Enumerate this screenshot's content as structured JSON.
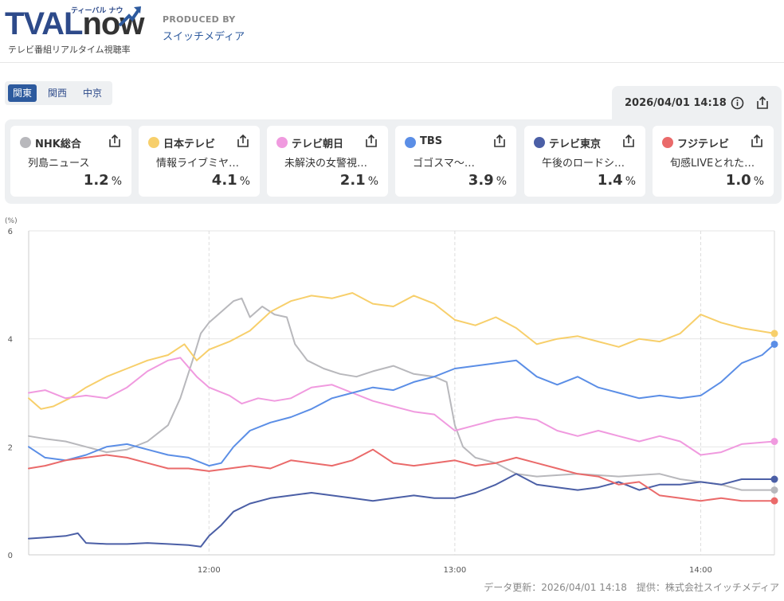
{
  "header": {
    "logo_text": "TVAL",
    "logo_now": "now",
    "logo_kana": "ティーバル ナウ",
    "logo_sub": "テレビ番組リアルタイム視聴率",
    "produced_by": "PRODUCED BY",
    "producer": "スイッチメディア"
  },
  "regions": [
    "関東",
    "関西",
    "中京"
  ],
  "active_region": "関東",
  "updated": "2026/04/01 14:18",
  "channels": [
    {
      "name": "NHK総合",
      "program": "列島ニュース",
      "rating": "1.2",
      "unit": "%",
      "color": "#b8b8bc"
    },
    {
      "name": "日本テレビ",
      "program": "情報ライブミヤ…",
      "rating": "4.1",
      "unit": "%",
      "color": "#f7cf6b"
    },
    {
      "name": "テレビ朝日",
      "program": "未解決の女警視…",
      "rating": "2.1",
      "unit": "%",
      "color": "#f09adf"
    },
    {
      "name": "TBS",
      "program": "ゴゴスマ〜…",
      "rating": "3.9",
      "unit": "%",
      "color": "#5b8ee6"
    },
    {
      "name": "テレビ東京",
      "program": "午後のロードシ…",
      "rating": "1.4",
      "unit": "%",
      "color": "#4b5fa6"
    },
    {
      "name": "フジテレビ",
      "program": "旬感LIVEとれた…",
      "rating": "1.0",
      "unit": "%",
      "color": "#ea6a6a"
    }
  ],
  "footer": "データ更新：2026/04/01 14:18　提供：株式会社スイッチメディア",
  "chart_data": {
    "type": "line",
    "ylabel": "(%)",
    "ylim": [
      0,
      6
    ],
    "yticks": [
      "0",
      "2",
      "4",
      "6"
    ],
    "xlim": [
      "11:16",
      "14:18"
    ],
    "xticks": [
      "12:00",
      "13:00",
      "14:00"
    ],
    "grid": true,
    "series": [
      {
        "name": "NHK総合",
        "color": "#b8b8bc",
        "values": [
          [
            "11:16",
            2.2
          ],
          [
            "11:20",
            2.15
          ],
          [
            "11:25",
            2.1
          ],
          [
            "11:30",
            2.0
          ],
          [
            "11:35",
            1.9
          ],
          [
            "11:40",
            1.95
          ],
          [
            "11:45",
            2.1
          ],
          [
            "11:50",
            2.4
          ],
          [
            "11:53",
            2.9
          ],
          [
            "11:56",
            3.6
          ],
          [
            "11:58",
            4.1
          ],
          [
            "12:00",
            4.3
          ],
          [
            "12:03",
            4.5
          ],
          [
            "12:06",
            4.7
          ],
          [
            "12:08",
            4.75
          ],
          [
            "12:10",
            4.4
          ],
          [
            "12:13",
            4.6
          ],
          [
            "12:16",
            4.45
          ],
          [
            "12:19",
            4.4
          ],
          [
            "12:21",
            3.9
          ],
          [
            "12:24",
            3.6
          ],
          [
            "12:28",
            3.45
          ],
          [
            "12:32",
            3.35
          ],
          [
            "12:36",
            3.3
          ],
          [
            "12:40",
            3.4
          ],
          [
            "12:45",
            3.5
          ],
          [
            "12:50",
            3.35
          ],
          [
            "12:55",
            3.3
          ],
          [
            "12:58",
            3.2
          ],
          [
            "13:00",
            2.4
          ],
          [
            "13:02",
            2.0
          ],
          [
            "13:05",
            1.8
          ],
          [
            "13:10",
            1.7
          ],
          [
            "13:15",
            1.5
          ],
          [
            "13:20",
            1.45
          ],
          [
            "13:30",
            1.5
          ],
          [
            "13:40",
            1.45
          ],
          [
            "13:50",
            1.5
          ],
          [
            "13:55",
            1.4
          ],
          [
            "14:00",
            1.35
          ],
          [
            "14:05",
            1.3
          ],
          [
            "14:10",
            1.2
          ],
          [
            "14:18",
            1.2
          ]
        ]
      },
      {
        "name": "日本テレビ",
        "color": "#f7cf6b",
        "values": [
          [
            "11:16",
            2.9
          ],
          [
            "11:19",
            2.7
          ],
          [
            "11:22",
            2.75
          ],
          [
            "11:26",
            2.9
          ],
          [
            "11:30",
            3.1
          ],
          [
            "11:35",
            3.3
          ],
          [
            "11:40",
            3.45
          ],
          [
            "11:45",
            3.6
          ],
          [
            "11:50",
            3.7
          ],
          [
            "11:54",
            3.9
          ],
          [
            "11:57",
            3.6
          ],
          [
            "12:00",
            3.8
          ],
          [
            "12:05",
            3.95
          ],
          [
            "12:10",
            4.15
          ],
          [
            "12:15",
            4.5
          ],
          [
            "12:20",
            4.7
          ],
          [
            "12:25",
            4.8
          ],
          [
            "12:30",
            4.75
          ],
          [
            "12:35",
            4.85
          ],
          [
            "12:40",
            4.65
          ],
          [
            "12:45",
            4.6
          ],
          [
            "12:50",
            4.8
          ],
          [
            "12:55",
            4.65
          ],
          [
            "13:00",
            4.35
          ],
          [
            "13:05",
            4.25
          ],
          [
            "13:10",
            4.4
          ],
          [
            "13:15",
            4.2
          ],
          [
            "13:20",
            3.9
          ],
          [
            "13:25",
            4.0
          ],
          [
            "13:30",
            4.05
          ],
          [
            "13:35",
            3.95
          ],
          [
            "13:40",
            3.85
          ],
          [
            "13:45",
            4.0
          ],
          [
            "13:50",
            3.95
          ],
          [
            "13:55",
            4.1
          ],
          [
            "14:00",
            4.45
          ],
          [
            "14:05",
            4.3
          ],
          [
            "14:10",
            4.2
          ],
          [
            "14:18",
            4.1
          ]
        ]
      },
      {
        "name": "テレビ朝日",
        "color": "#f09adf",
        "values": [
          [
            "11:16",
            3.0
          ],
          [
            "11:20",
            3.05
          ],
          [
            "11:25",
            2.9
          ],
          [
            "11:30",
            2.95
          ],
          [
            "11:35",
            2.9
          ],
          [
            "11:40",
            3.1
          ],
          [
            "11:45",
            3.4
          ],
          [
            "11:50",
            3.6
          ],
          [
            "11:53",
            3.65
          ],
          [
            "11:57",
            3.3
          ],
          [
            "12:00",
            3.1
          ],
          [
            "12:05",
            2.95
          ],
          [
            "12:08",
            2.8
          ],
          [
            "12:12",
            2.9
          ],
          [
            "12:16",
            2.85
          ],
          [
            "12:20",
            2.9
          ],
          [
            "12:25",
            3.1
          ],
          [
            "12:30",
            3.15
          ],
          [
            "12:35",
            3.0
          ],
          [
            "12:40",
            2.85
          ],
          [
            "12:45",
            2.75
          ],
          [
            "12:50",
            2.65
          ],
          [
            "12:55",
            2.6
          ],
          [
            "13:00",
            2.3
          ],
          [
            "13:05",
            2.4
          ],
          [
            "13:10",
            2.5
          ],
          [
            "13:15",
            2.55
          ],
          [
            "13:20",
            2.5
          ],
          [
            "13:25",
            2.3
          ],
          [
            "13:30",
            2.2
          ],
          [
            "13:35",
            2.3
          ],
          [
            "13:40",
            2.2
          ],
          [
            "13:45",
            2.1
          ],
          [
            "13:50",
            2.2
          ],
          [
            "13:55",
            2.1
          ],
          [
            "14:00",
            1.85
          ],
          [
            "14:05",
            1.9
          ],
          [
            "14:10",
            2.05
          ],
          [
            "14:18",
            2.1
          ]
        ]
      },
      {
        "name": "TBS",
        "color": "#5b8ee6",
        "values": [
          [
            "11:16",
            2.0
          ],
          [
            "11:20",
            1.8
          ],
          [
            "11:25",
            1.75
          ],
          [
            "11:30",
            1.85
          ],
          [
            "11:35",
            2.0
          ],
          [
            "11:40",
            2.05
          ],
          [
            "11:45",
            1.95
          ],
          [
            "11:50",
            1.85
          ],
          [
            "11:55",
            1.8
          ],
          [
            "12:00",
            1.65
          ],
          [
            "12:03",
            1.7
          ],
          [
            "12:06",
            2.0
          ],
          [
            "12:10",
            2.3
          ],
          [
            "12:15",
            2.45
          ],
          [
            "12:20",
            2.55
          ],
          [
            "12:25",
            2.7
          ],
          [
            "12:30",
            2.9
          ],
          [
            "12:35",
            3.0
          ],
          [
            "12:40",
            3.1
          ],
          [
            "12:45",
            3.05
          ],
          [
            "12:50",
            3.2
          ],
          [
            "12:55",
            3.3
          ],
          [
            "13:00",
            3.45
          ],
          [
            "13:05",
            3.5
          ],
          [
            "13:10",
            3.55
          ],
          [
            "13:15",
            3.6
          ],
          [
            "13:20",
            3.3
          ],
          [
            "13:25",
            3.15
          ],
          [
            "13:30",
            3.3
          ],
          [
            "13:35",
            3.1
          ],
          [
            "13:40",
            3.0
          ],
          [
            "13:45",
            2.9
          ],
          [
            "13:50",
            2.95
          ],
          [
            "13:55",
            2.9
          ],
          [
            "14:00",
            2.95
          ],
          [
            "14:05",
            3.2
          ],
          [
            "14:10",
            3.55
          ],
          [
            "14:15",
            3.7
          ],
          [
            "14:18",
            3.9
          ]
        ]
      },
      {
        "name": "テレビ東京",
        "color": "#4b5fa6",
        "values": [
          [
            "11:16",
            0.3
          ],
          [
            "11:20",
            0.32
          ],
          [
            "11:25",
            0.35
          ],
          [
            "11:28",
            0.4
          ],
          [
            "11:30",
            0.22
          ],
          [
            "11:35",
            0.2
          ],
          [
            "11:40",
            0.2
          ],
          [
            "11:45",
            0.22
          ],
          [
            "11:50",
            0.2
          ],
          [
            "11:55",
            0.18
          ],
          [
            "11:58",
            0.15
          ],
          [
            "12:00",
            0.35
          ],
          [
            "12:03",
            0.55
          ],
          [
            "12:06",
            0.8
          ],
          [
            "12:10",
            0.95
          ],
          [
            "12:15",
            1.05
          ],
          [
            "12:20",
            1.1
          ],
          [
            "12:25",
            1.15
          ],
          [
            "12:30",
            1.1
          ],
          [
            "12:35",
            1.05
          ],
          [
            "12:40",
            1.0
          ],
          [
            "12:45",
            1.05
          ],
          [
            "12:50",
            1.1
          ],
          [
            "12:55",
            1.05
          ],
          [
            "13:00",
            1.05
          ],
          [
            "13:05",
            1.15
          ],
          [
            "13:10",
            1.3
          ],
          [
            "13:15",
            1.5
          ],
          [
            "13:20",
            1.3
          ],
          [
            "13:25",
            1.25
          ],
          [
            "13:30",
            1.2
          ],
          [
            "13:35",
            1.25
          ],
          [
            "13:40",
            1.35
          ],
          [
            "13:45",
            1.2
          ],
          [
            "13:50",
            1.3
          ],
          [
            "13:55",
            1.3
          ],
          [
            "14:00",
            1.35
          ],
          [
            "14:05",
            1.3
          ],
          [
            "14:10",
            1.4
          ],
          [
            "14:18",
            1.4
          ]
        ]
      },
      {
        "name": "フジテレビ",
        "color": "#ea6a6a",
        "values": [
          [
            "11:16",
            1.6
          ],
          [
            "11:20",
            1.65
          ],
          [
            "11:25",
            1.75
          ],
          [
            "11:30",
            1.8
          ],
          [
            "11:35",
            1.85
          ],
          [
            "11:40",
            1.8
          ],
          [
            "11:45",
            1.7
          ],
          [
            "11:50",
            1.6
          ],
          [
            "11:55",
            1.6
          ],
          [
            "12:00",
            1.55
          ],
          [
            "12:05",
            1.6
          ],
          [
            "12:10",
            1.65
          ],
          [
            "12:15",
            1.6
          ],
          [
            "12:20",
            1.75
          ],
          [
            "12:25",
            1.7
          ],
          [
            "12:30",
            1.65
          ],
          [
            "12:35",
            1.75
          ],
          [
            "12:40",
            1.95
          ],
          [
            "12:45",
            1.7
          ],
          [
            "12:50",
            1.65
          ],
          [
            "12:55",
            1.7
          ],
          [
            "13:00",
            1.75
          ],
          [
            "13:05",
            1.65
          ],
          [
            "13:10",
            1.7
          ],
          [
            "13:15",
            1.8
          ],
          [
            "13:20",
            1.7
          ],
          [
            "13:25",
            1.6
          ],
          [
            "13:30",
            1.5
          ],
          [
            "13:35",
            1.45
          ],
          [
            "13:40",
            1.3
          ],
          [
            "13:45",
            1.35
          ],
          [
            "13:50",
            1.1
          ],
          [
            "13:55",
            1.05
          ],
          [
            "14:00",
            1.0
          ],
          [
            "14:05",
            1.05
          ],
          [
            "14:10",
            1.0
          ],
          [
            "14:18",
            1.0
          ]
        ]
      }
    ]
  }
}
